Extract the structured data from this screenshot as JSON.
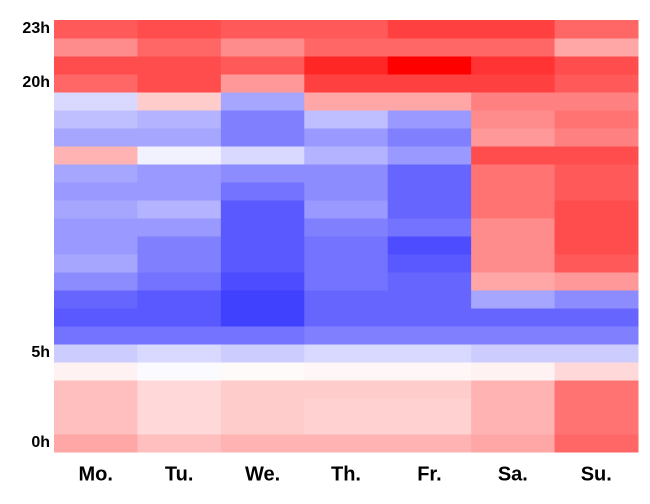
{
  "chart_data": {
    "type": "heatmap",
    "x": [
      "Mo.",
      "Tu.",
      "We.",
      "Th.",
      "Fr.",
      "Sa.",
      "Su."
    ],
    "ylim": [
      -0.5,
      23.5
    ],
    "yticks": [
      {
        "value": 0,
        "label": "0h"
      },
      {
        "value": 5,
        "label": "5h"
      },
      {
        "value": 20,
        "label": "20h"
      },
      {
        "value": 23,
        "label": "23h"
      }
    ],
    "clim": [
      -1,
      1
    ],
    "colorscale": [
      "#0000ff",
      "#ffffff",
      "#ff0000"
    ],
    "z": [
      [
        0.35,
        0.25,
        0.3,
        0.3,
        0.3,
        0.35,
        0.6
      ],
      [
        0.25,
        0.15,
        0.2,
        0.18,
        0.18,
        0.3,
        0.55
      ],
      [
        0.25,
        0.15,
        0.2,
        0.18,
        0.18,
        0.3,
        0.55
      ],
      [
        0.25,
        0.15,
        0.2,
        0.2,
        0.2,
        0.3,
        0.55
      ],
      [
        0.05,
        -0.02,
        0.02,
        0.03,
        0.03,
        0.05,
        0.15
      ],
      [
        -0.2,
        -0.15,
        -0.2,
        -0.15,
        -0.15,
        -0.2,
        -0.2
      ],
      [
        -0.55,
        -0.55,
        -0.55,
        -0.5,
        -0.5,
        -0.5,
        -0.5
      ],
      [
        -0.65,
        -0.65,
        -0.75,
        -0.6,
        -0.6,
        -0.6,
        -0.6
      ],
      [
        -0.6,
        -0.65,
        -0.75,
        -0.6,
        -0.6,
        -0.35,
        -0.45
      ],
      [
        -0.45,
        -0.55,
        -0.7,
        -0.55,
        -0.6,
        0.35,
        0.4
      ],
      [
        -0.35,
        -0.5,
        -0.65,
        -0.55,
        -0.65,
        0.45,
        0.65
      ],
      [
        -0.4,
        -0.5,
        -0.65,
        -0.55,
        -0.7,
        0.45,
        0.7
      ],
      [
        -0.4,
        -0.4,
        -0.65,
        -0.5,
        -0.55,
        0.45,
        0.7
      ],
      [
        -0.35,
        -0.3,
        -0.65,
        -0.4,
        -0.6,
        0.55,
        0.7
      ],
      [
        -0.4,
        -0.4,
        -0.55,
        -0.45,
        -0.6,
        0.55,
        0.65
      ],
      [
        -0.35,
        -0.4,
        -0.45,
        -0.45,
        -0.6,
        0.55,
        0.65
      ],
      [
        0.3,
        -0.05,
        -0.15,
        -0.3,
        -0.4,
        0.7,
        0.7
      ],
      [
        -0.35,
        -0.35,
        -0.5,
        -0.4,
        -0.5,
        0.4,
        0.5
      ],
      [
        -0.25,
        -0.3,
        -0.5,
        -0.25,
        -0.4,
        0.45,
        0.55
      ],
      [
        -0.15,
        0.2,
        -0.35,
        0.35,
        0.35,
        0.5,
        0.5
      ],
      [
        0.6,
        0.7,
        0.4,
        0.75,
        0.75,
        0.75,
        0.65
      ],
      [
        0.7,
        0.7,
        0.65,
        0.85,
        1.0,
        0.8,
        0.7
      ],
      [
        0.45,
        0.6,
        0.45,
        0.6,
        0.6,
        0.6,
        0.35
      ],
      [
        0.65,
        0.7,
        0.65,
        0.65,
        0.75,
        0.75,
        0.6
      ]
    ]
  }
}
